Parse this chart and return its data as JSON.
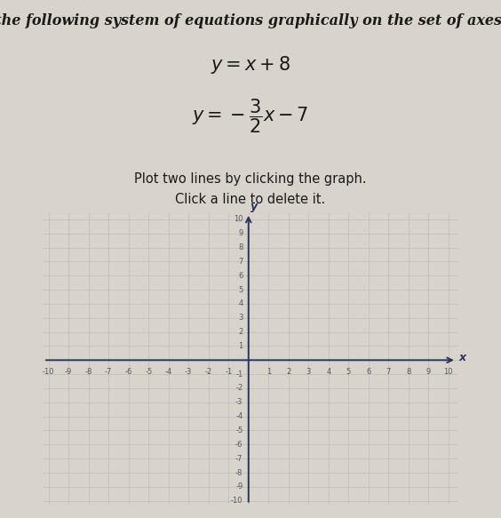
{
  "title_line1": "Solve the following system of equations graphically on the set of axes below",
  "eq1_latex": "$y = x + 8$",
  "eq2_latex": "$y = -\\dfrac{3}{2}x - 7$",
  "instruction1": "Plot two lines by clicking the graph.",
  "instruction2": "Click a line to delete it.",
  "xmin": -10,
  "xmax": 10,
  "ymin": -10,
  "ymax": 10,
  "bg_color": "#d8d4cc",
  "graph_bg": "#d8d4cc",
  "axis_color": "#2a3560",
  "grid_color": "#aaaaaa",
  "text_color": "#1a1a1a",
  "tick_label_color": "#555566",
  "title_fontsize": 11.5,
  "eq_fontsize": 15,
  "instruction_fontsize": 10.5
}
